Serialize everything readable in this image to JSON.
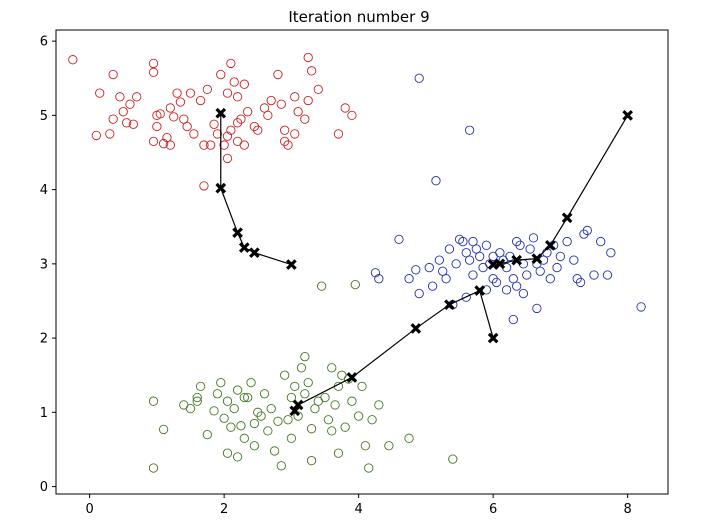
{
  "chart_data": {
    "type": "scatter",
    "title": "Iteration number 9",
    "xlabel": "",
    "ylabel": "",
    "xlim": [
      -0.5,
      8.6
    ],
    "ylim": [
      -0.1,
      6.15
    ],
    "grid": false,
    "xticks": [
      0,
      2,
      4,
      6,
      8
    ],
    "yticks": [
      0,
      1,
      2,
      3,
      4,
      5,
      6
    ],
    "colors": {
      "red": "#cc2222",
      "blue": "#2233aa",
      "green": "#447722",
      "path": "#000000"
    },
    "series": [
      {
        "color": "red",
        "marker": "open-circle",
        "points": [
          [
            -0.25,
            5.75
          ],
          [
            0.35,
            5.55
          ],
          [
            0.15,
            5.3
          ],
          [
            0.45,
            5.25
          ],
          [
            0.6,
            5.15
          ],
          [
            0.5,
            5.05
          ],
          [
            0.35,
            4.95
          ],
          [
            0.55,
            4.9
          ],
          [
            0.3,
            4.75
          ],
          [
            0.1,
            4.73
          ],
          [
            0.7,
            5.25
          ],
          [
            0.65,
            4.88
          ],
          [
            0.95,
            5.7
          ],
          [
            0.95,
            5.58
          ],
          [
            1.0,
            5.0
          ],
          [
            1.05,
            5.02
          ],
          [
            1.0,
            4.85
          ],
          [
            1.15,
            4.7
          ],
          [
            1.1,
            4.62
          ],
          [
            1.2,
            5.1
          ],
          [
            1.3,
            5.3
          ],
          [
            1.35,
            5.18
          ],
          [
            1.4,
            4.95
          ],
          [
            1.45,
            4.85
          ],
          [
            1.55,
            4.75
          ],
          [
            1.7,
            4.6
          ],
          [
            1.8,
            4.6
          ],
          [
            1.5,
            5.3
          ],
          [
            1.65,
            5.2
          ],
          [
            1.75,
            5.35
          ],
          [
            1.95,
            5.55
          ],
          [
            2.05,
            5.3
          ],
          [
            2.15,
            5.45
          ],
          [
            2.2,
            5.25
          ],
          [
            2.3,
            5.42
          ],
          [
            2.35,
            5.05
          ],
          [
            2.25,
            4.95
          ],
          [
            2.2,
            4.9
          ],
          [
            2.1,
            4.8
          ],
          [
            2.05,
            4.72
          ],
          [
            2.2,
            4.65
          ],
          [
            2.3,
            4.6
          ],
          [
            1.85,
            4.88
          ],
          [
            1.9,
            4.75
          ],
          [
            2.0,
            4.6
          ],
          [
            2.05,
            4.42
          ],
          [
            2.1,
            5.7
          ],
          [
            2.45,
            4.85
          ],
          [
            2.5,
            4.8
          ],
          [
            2.6,
            5.1
          ],
          [
            2.65,
            5.0
          ],
          [
            2.7,
            5.2
          ],
          [
            2.85,
            5.15
          ],
          [
            2.8,
            5.55
          ],
          [
            2.9,
            4.8
          ],
          [
            3.05,
            5.25
          ],
          [
            3.05,
            4.75
          ],
          [
            3.1,
            5.05
          ],
          [
            3.2,
            4.95
          ],
          [
            3.25,
            5.2
          ],
          [
            3.25,
            5.78
          ],
          [
            3.3,
            5.6
          ],
          [
            2.95,
            4.6
          ],
          [
            2.9,
            4.65
          ],
          [
            3.4,
            5.35
          ],
          [
            3.7,
            4.75
          ],
          [
            3.8,
            5.1
          ],
          [
            3.9,
            5.0
          ],
          [
            1.7,
            4.05
          ],
          [
            1.2,
            4.6
          ],
          [
            1.25,
            4.98
          ],
          [
            0.95,
            4.65
          ]
        ]
      },
      {
        "color": "blue",
        "marker": "open-circle",
        "points": [
          [
            4.9,
            5.5
          ],
          [
            5.65,
            4.8
          ],
          [
            5.15,
            4.12
          ],
          [
            4.6,
            3.33
          ],
          [
            4.25,
            2.88
          ],
          [
            4.3,
            2.8
          ],
          [
            4.75,
            2.8
          ],
          [
            4.85,
            2.92
          ],
          [
            4.9,
            2.6
          ],
          [
            5.05,
            2.95
          ],
          [
            5.2,
            3.05
          ],
          [
            5.25,
            2.9
          ],
          [
            5.3,
            2.8
          ],
          [
            5.35,
            3.2
          ],
          [
            5.45,
            3.0
          ],
          [
            5.5,
            3.33
          ],
          [
            5.55,
            3.3
          ],
          [
            5.6,
            3.15
          ],
          [
            5.65,
            3.05
          ],
          [
            5.7,
            2.85
          ],
          [
            5.75,
            3.2
          ],
          [
            5.8,
            3.1
          ],
          [
            5.85,
            2.95
          ],
          [
            5.9,
            3.25
          ],
          [
            5.95,
            3.0
          ],
          [
            6.0,
            2.8
          ],
          [
            6.05,
            2.75
          ],
          [
            6.1,
            3.15
          ],
          [
            6.15,
            3.05
          ],
          [
            6.2,
            2.95
          ],
          [
            6.25,
            3.1
          ],
          [
            6.3,
            2.8
          ],
          [
            6.35,
            2.7
          ],
          [
            6.4,
            3.25
          ],
          [
            6.45,
            3.0
          ],
          [
            6.5,
            2.85
          ],
          [
            6.55,
            3.2
          ],
          [
            6.6,
            3.35
          ],
          [
            6.65,
            3.0
          ],
          [
            6.7,
            2.9
          ],
          [
            6.75,
            3.05
          ],
          [
            6.8,
            3.15
          ],
          [
            6.85,
            2.8
          ],
          [
            6.9,
            3.25
          ],
          [
            6.95,
            2.95
          ],
          [
            7.0,
            3.1
          ],
          [
            7.1,
            3.3
          ],
          [
            7.2,
            3.05
          ],
          [
            7.25,
            2.8
          ],
          [
            7.3,
            2.75
          ],
          [
            7.4,
            3.45
          ],
          [
            7.5,
            2.85
          ],
          [
            7.6,
            3.3
          ],
          [
            7.7,
            2.85
          ],
          [
            7.75,
            3.15
          ],
          [
            8.2,
            2.42
          ],
          [
            6.3,
            2.25
          ],
          [
            6.65,
            2.4
          ],
          [
            5.1,
            2.7
          ],
          [
            5.4,
            2.45
          ],
          [
            5.6,
            2.55
          ],
          [
            5.9,
            2.65
          ],
          [
            6.0,
            3.1
          ],
          [
            5.7,
            3.3
          ],
          [
            6.45,
            2.6
          ],
          [
            6.35,
            3.3
          ],
          [
            7.35,
            3.4
          ],
          [
            6.2,
            2.65
          ]
        ]
      },
      {
        "color": "green",
        "marker": "open-circle",
        "points": [
          [
            0.95,
            1.15
          ],
          [
            0.95,
            0.25
          ],
          [
            1.1,
            0.77
          ],
          [
            1.4,
            1.1
          ],
          [
            1.5,
            1.05
          ],
          [
            1.6,
            1.2
          ],
          [
            1.6,
            1.15
          ],
          [
            1.65,
            1.35
          ],
          [
            1.75,
            0.7
          ],
          [
            1.85,
            1.02
          ],
          [
            1.9,
            1.25
          ],
          [
            1.95,
            1.4
          ],
          [
            2.05,
            1.15
          ],
          [
            2.0,
            0.92
          ],
          [
            2.1,
            0.8
          ],
          [
            2.15,
            1.05
          ],
          [
            2.2,
            1.3
          ],
          [
            2.25,
            0.82
          ],
          [
            2.3,
            0.65
          ],
          [
            2.35,
            1.2
          ],
          [
            2.4,
            1.4
          ],
          [
            2.45,
            0.85
          ],
          [
            2.5,
            1.0
          ],
          [
            2.55,
            0.95
          ],
          [
            2.6,
            1.25
          ],
          [
            2.65,
            0.75
          ],
          [
            2.7,
            1.05
          ],
          [
            2.75,
            0.48
          ],
          [
            2.8,
            0.88
          ],
          [
            2.85,
            0.28
          ],
          [
            2.9,
            1.5
          ],
          [
            2.95,
            0.9
          ],
          [
            3.0,
            1.2
          ],
          [
            3.05,
            1.35
          ],
          [
            3.1,
            0.95
          ],
          [
            3.15,
            1.6
          ],
          [
            3.2,
            1.25
          ],
          [
            3.25,
            1.4
          ],
          [
            3.3,
            0.78
          ],
          [
            3.35,
            1.05
          ],
          [
            3.4,
            1.15
          ],
          [
            3.5,
            1.2
          ],
          [
            3.55,
            0.9
          ],
          [
            3.6,
            0.75
          ],
          [
            3.65,
            1.1
          ],
          [
            3.7,
            1.35
          ],
          [
            3.8,
            0.8
          ],
          [
            3.85,
            1.45
          ],
          [
            3.9,
            1.15
          ],
          [
            4.0,
            0.95
          ],
          [
            4.05,
            1.35
          ],
          [
            4.1,
            0.55
          ],
          [
            4.15,
            0.25
          ],
          [
            4.2,
            0.9
          ],
          [
            4.3,
            1.1
          ],
          [
            4.45,
            0.55
          ],
          [
            4.75,
            0.65
          ],
          [
            5.4,
            0.37
          ],
          [
            2.05,
            0.45
          ],
          [
            2.2,
            0.4
          ],
          [
            2.45,
            0.55
          ],
          [
            3.0,
            0.65
          ],
          [
            3.2,
            1.75
          ],
          [
            3.3,
            0.35
          ],
          [
            3.7,
            0.45
          ],
          [
            3.45,
            2.7
          ],
          [
            3.95,
            2.72
          ],
          [
            3.6,
            1.6
          ],
          [
            2.3,
            1.2
          ],
          [
            3.75,
            1.5
          ]
        ]
      }
    ],
    "centroid_paths": [
      {
        "points": [
          [
            1.95,
            5.03
          ],
          [
            1.95,
            4.02
          ],
          [
            2.2,
            3.42
          ],
          [
            2.3,
            3.22
          ],
          [
            2.45,
            3.15
          ],
          [
            3.0,
            2.99
          ]
        ]
      },
      {
        "points": [
          [
            8.0,
            5.0
          ],
          [
            7.1,
            3.62
          ],
          [
            6.85,
            3.25
          ],
          [
            6.65,
            3.07
          ],
          [
            6.35,
            3.05
          ],
          [
            6.1,
            3.0
          ],
          [
            6.0,
            2.99
          ]
        ]
      },
      {
        "points": [
          [
            6.0,
            2.0
          ],
          [
            5.8,
            2.64
          ],
          [
            5.35,
            2.45
          ],
          [
            4.85,
            2.13
          ],
          [
            3.9,
            1.47
          ],
          [
            3.1,
            1.1
          ],
          [
            3.05,
            1.02
          ]
        ]
      }
    ]
  }
}
